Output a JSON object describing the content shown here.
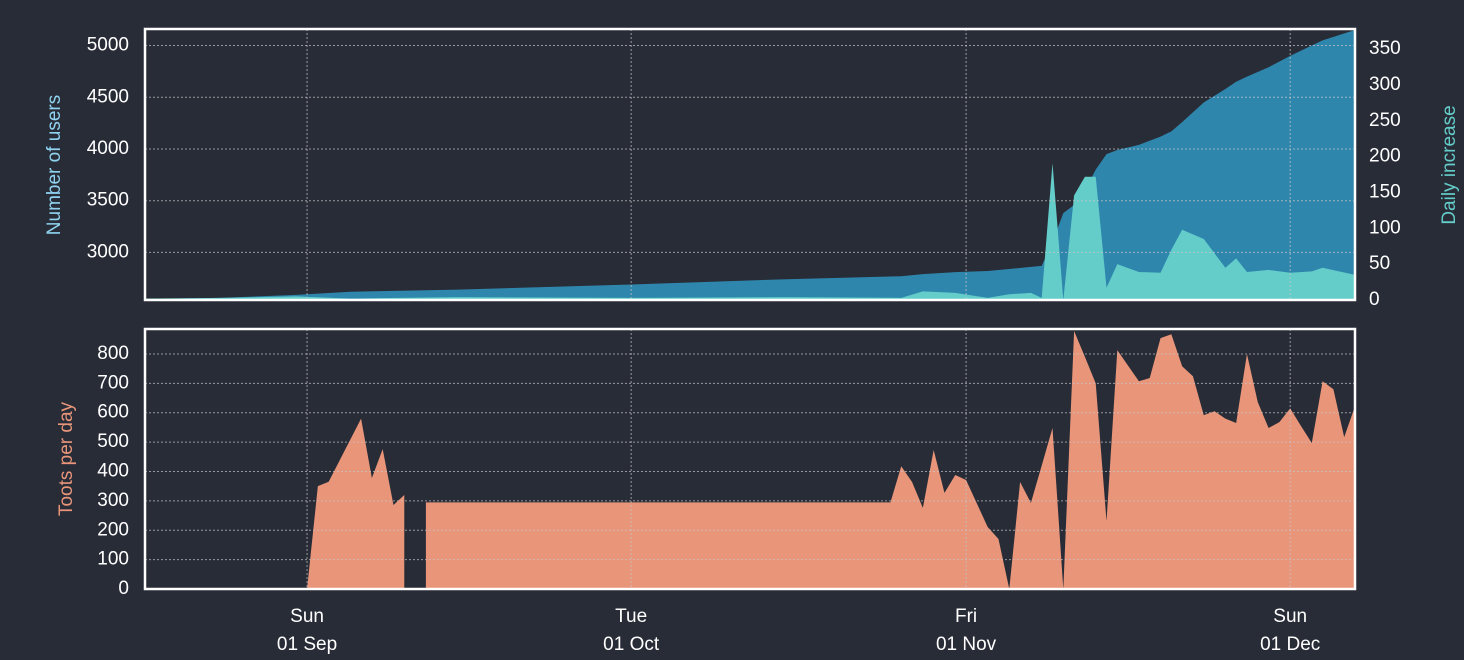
{
  "chart_data": [
    {
      "type": "area",
      "ylabel": "Number of users",
      "y2label": "Daily increase",
      "x": [
        "08-17",
        "08-24",
        "08-31",
        "09-05",
        "09-15",
        "10-01",
        "10-15",
        "10-26",
        "10-28",
        "10-31",
        "11-03",
        "11-05",
        "11-07",
        "11-08",
        "11-09",
        "11-10",
        "11-11",
        "11-12",
        "11-13",
        "11-14",
        "11-15",
        "11-17",
        "11-19",
        "11-20",
        "11-21",
        "11-23",
        "11-25",
        "11-26",
        "11-27",
        "11-29",
        "12-01",
        "12-03",
        "12-04",
        "12-07"
      ],
      "series": [
        {
          "name": "Number of users",
          "color": "#2f86ad",
          "axis": "y",
          "values": [
            2550,
            2560,
            2590,
            2620,
            2640,
            2690,
            2740,
            2770,
            2790,
            2810,
            2820,
            2840,
            2860,
            2870,
            3100,
            3380,
            3460,
            3600,
            3800,
            3950,
            3990,
            4040,
            4120,
            4170,
            4260,
            4450,
            4580,
            4650,
            4700,
            4790,
            4900,
            5000,
            5050,
            5150
          ]
        },
        {
          "name": "Daily increase",
          "color": "#64cdc9",
          "axis": "y2",
          "values": [
            2,
            3,
            5,
            2,
            4,
            3,
            4,
            3,
            12,
            10,
            3,
            8,
            10,
            3,
            191,
            0,
            146,
            172,
            172,
            17,
            50,
            39,
            38,
            70,
            98,
            85,
            45,
            58,
            39,
            42,
            38,
            40,
            45,
            35
          ]
        }
      ],
      "xlim": [
        "08-17",
        "12-07"
      ],
      "ylim": [
        2540,
        5160
      ],
      "yticks": [
        3000,
        3500,
        4000,
        4500,
        5000
      ],
      "y2lim": [
        0,
        378
      ],
      "y2ticks": [
        0,
        50,
        100,
        150,
        200,
        250,
        300,
        350
      ],
      "grid": true
    },
    {
      "type": "area",
      "ylabel": "Toots per day",
      "x": [
        "08-17",
        "09-01",
        "09-02",
        "09-03",
        "09-06",
        "09-07",
        "09-08",
        "09-09",
        "09-10",
        "09-11",
        "09-12",
        "10-25",
        "10-26",
        "10-27",
        "10-28",
        "10-29",
        "10-30",
        "10-31",
        "11-01",
        "11-03",
        "11-04",
        "11-05",
        "11-06",
        "11-07",
        "11-08",
        "11-09",
        "11-10",
        "11-11",
        "11-12",
        "11-13",
        "11-14",
        "11-15",
        "11-16",
        "11-17",
        "11-18",
        "11-19",
        "11-20",
        "11-21",
        "11-22",
        "11-23",
        "11-24",
        "11-25",
        "11-26",
        "11-27",
        "11-28",
        "11-29",
        "11-30",
        "12-01",
        "12-02",
        "12-03",
        "12-04",
        "12-05",
        "12-06",
        "12-07"
      ],
      "series": [
        {
          "name": "Toots per day",
          "color": "#e8957a",
          "values": [
            0,
            0,
            350,
            365,
            580,
            378,
            476,
            286,
            320,
            null,
            295,
            295,
            418,
            364,
            276,
            473,
            327,
            388,
            371,
            211,
            170,
            0,
            364,
            293,
            420,
            548,
            0,
            878,
            790,
            700,
            231,
            813,
            760,
            707,
            718,
            854,
            867,
            758,
            724,
            592,
            605,
            580,
            565,
            800,
            636,
            548,
            568,
            615,
            555,
            497,
            707,
            680,
            517,
            622
          ]
        }
      ],
      "xlim": [
        "08-17",
        "12-07"
      ],
      "ylim": [
        0,
        885
      ],
      "yticks": [
        0,
        100,
        200,
        300,
        400,
        500,
        600,
        700,
        800
      ],
      "xticks": [
        {
          "value": "09-01",
          "label": [
            "Sun",
            "01 Sep"
          ]
        },
        {
          "value": "10-01",
          "label": [
            "Tue",
            "01 Oct"
          ]
        },
        {
          "value": "11-01",
          "label": [
            "Fri",
            "01 Nov"
          ]
        },
        {
          "value": "12-01",
          "label": [
            "Sun",
            "01 Dec"
          ]
        }
      ],
      "grid": true
    }
  ]
}
